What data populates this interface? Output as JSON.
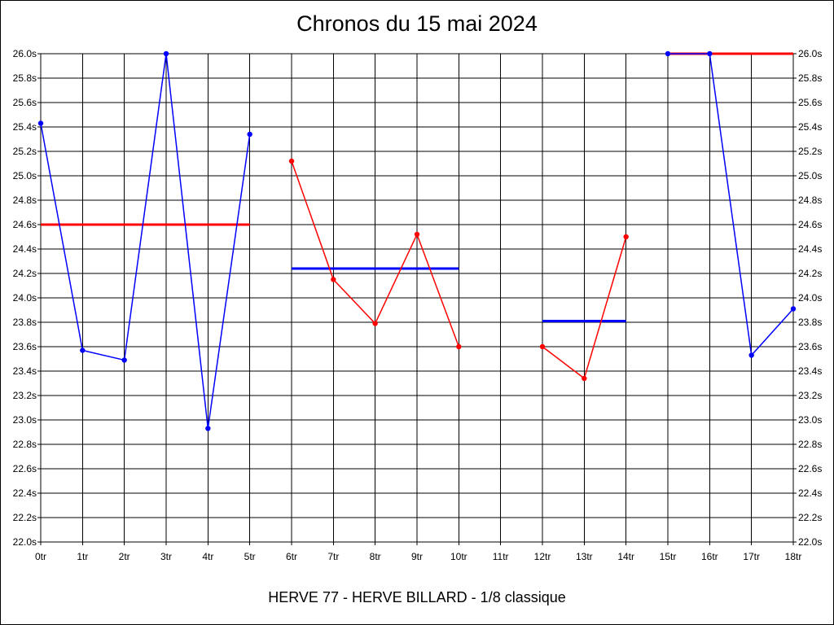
{
  "chart_data": {
    "type": "line",
    "title": "Chronos du 15 mai 2024",
    "subtitle": "HERVE 77 - HERVE BILLARD - 1/8 classique",
    "ylim": [
      22.0,
      26.0
    ],
    "y_ticks": [
      22.0,
      22.2,
      22.4,
      22.6,
      22.8,
      23.0,
      23.2,
      23.4,
      23.6,
      23.8,
      24.0,
      24.2,
      24.4,
      24.6,
      24.8,
      25.0,
      25.2,
      25.4,
      25.6,
      25.8,
      26.0
    ],
    "y_tick_suffix": "s",
    "x_ticks": [
      "0tr",
      "1tr",
      "2tr",
      "3tr",
      "4tr",
      "5tr",
      "6tr",
      "7tr",
      "8tr",
      "9tr",
      "10tr",
      "11tr",
      "12tr",
      "13tr",
      "14tr",
      "15tr",
      "16tr",
      "17tr",
      "18tr"
    ],
    "grid": true,
    "series": [
      {
        "color": "#0000ff",
        "x": [
          0,
          1,
          2,
          3,
          4,
          5
        ],
        "y": [
          25.43,
          23.57,
          23.49,
          26.0,
          22.93,
          25.34
        ]
      },
      {
        "color": "#ff0000",
        "x": [
          6,
          7,
          8,
          9,
          10
        ],
        "y": [
          25.12,
          24.15,
          23.79,
          24.52,
          23.6
        ]
      },
      {
        "color": "#ff0000",
        "x": [
          12,
          13,
          14
        ],
        "y": [
          23.6,
          23.34,
          24.5
        ]
      },
      {
        "color": "#0000ff",
        "x": [
          15,
          16,
          17,
          18
        ],
        "y": [
          26.0,
          26.0,
          23.53,
          23.91
        ]
      }
    ],
    "averages": [
      {
        "color": "#ff0000",
        "x0": 0,
        "x1": 5,
        "y": 24.6
      },
      {
        "color": "#0000ff",
        "x0": 6,
        "x1": 10,
        "y": 24.24
      },
      {
        "color": "#0000ff",
        "x0": 12,
        "x1": 14,
        "y": 23.81
      },
      {
        "color": "#ff0000",
        "x0": 15,
        "x1": 18,
        "y": 26.0
      }
    ]
  }
}
